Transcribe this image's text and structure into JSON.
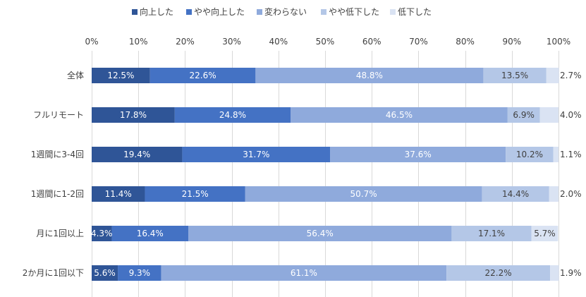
{
  "chart_data": {
    "type": "bar",
    "orientation": "horizontal-stacked-100",
    "title": "",
    "xlabel": "",
    "ylabel": "",
    "xlim": [
      0,
      100
    ],
    "x_tick_labels": [
      "0%",
      "10%",
      "20%",
      "30%",
      "40%",
      "50%",
      "60%",
      "70%",
      "80%",
      "90%",
      "100%"
    ],
    "grid": true,
    "legend_position": "top",
    "categories": [
      "全体",
      "フルリモート",
      "1週間に3-4回",
      "1週間に1-2回",
      "月に1回以上",
      "2か月に1回以下"
    ],
    "series": [
      {
        "name": "向上した",
        "color": "#2f5597",
        "label_color": "#ffffff",
        "values": [
          12.5,
          17.8,
          19.4,
          11.4,
          4.3,
          5.6
        ]
      },
      {
        "name": "やや向上した",
        "color": "#4472c4",
        "label_color": "#ffffff",
        "values": [
          22.6,
          24.8,
          31.7,
          21.5,
          16.4,
          9.3
        ]
      },
      {
        "name": "変わらない",
        "color": "#8faadc",
        "label_color": "#ffffff",
        "values": [
          48.8,
          46.5,
          37.6,
          50.7,
          56.4,
          61.1
        ]
      },
      {
        "name": "やや低下した",
        "color": "#b4c7e7",
        "label_color": "#404040",
        "values": [
          13.5,
          6.9,
          10.2,
          14.4,
          17.1,
          22.2
        ]
      },
      {
        "name": "低下した",
        "color": "#dae3f3",
        "label_color": "#404040",
        "values": [
          2.7,
          4.0,
          1.1,
          2.0,
          5.7,
          1.9
        ]
      }
    ],
    "data_labels": [
      [
        "12.5%",
        "22.6%",
        "48.8%",
        "13.5%",
        "2.7%"
      ],
      [
        "17.8%",
        "24.8%",
        "46.5%",
        "6.9%",
        "4.0%"
      ],
      [
        "19.4%",
        "31.7%",
        "37.6%",
        "10.2%",
        "1.1%"
      ],
      [
        "11.4%",
        "21.5%",
        "50.7%",
        "14.4%",
        "2.0%"
      ],
      [
        "4.3%",
        "16.4%",
        "56.4%",
        "17.1%",
        "5.7%"
      ],
      [
        "5.6%",
        "9.3%",
        "61.1%",
        "22.2%",
        "1.9%"
      ]
    ],
    "outside_label_for_last_series": [
      true,
      true,
      true,
      true,
      false,
      true
    ]
  }
}
